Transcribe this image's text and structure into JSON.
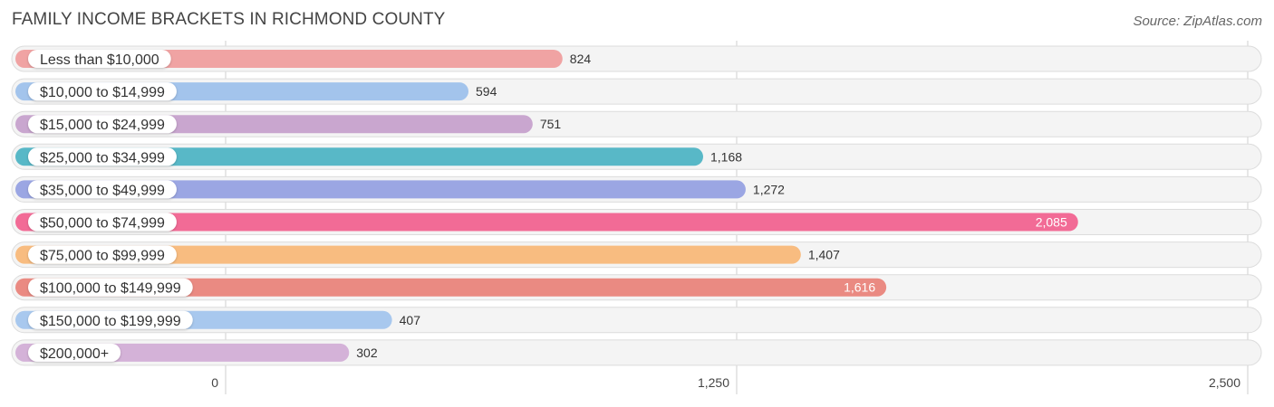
{
  "title": "FAMILY INCOME BRACKETS IN RICHMOND COUNTY",
  "source": "Source: ZipAtlas.com",
  "chart_data": {
    "type": "bar",
    "orientation": "horizontal",
    "title": "FAMILY INCOME BRACKETS IN RICHMOND COUNTY",
    "xlabel": "",
    "ylabel": "",
    "xlim": [
      0,
      2500
    ],
    "ticks": [
      0,
      1250,
      2500
    ],
    "tick_labels": [
      "0",
      "1,250",
      "2,500"
    ],
    "categories": [
      "Less than $10,000",
      "$10,000 to $14,999",
      "$15,000 to $24,999",
      "$25,000 to $34,999",
      "$35,000 to $49,999",
      "$50,000 to $74,999",
      "$75,000 to $99,999",
      "$100,000 to $149,999",
      "$150,000 to $199,999",
      "$200,000+"
    ],
    "values": [
      824,
      594,
      751,
      1168,
      1272,
      2085,
      1407,
      1616,
      407,
      302
    ],
    "value_labels": [
      "824",
      "594",
      "751",
      "1,168",
      "1,272",
      "2,085",
      "1,407",
      "1,616",
      "407",
      "302"
    ],
    "colors": [
      "#f0a3a3",
      "#a3c4ec",
      "#c9a6cf",
      "#58b8c7",
      "#9ba6e3",
      "#f26b96",
      "#f8bc80",
      "#ea8a82",
      "#a8c8ee",
      "#d4b2d8"
    ]
  }
}
